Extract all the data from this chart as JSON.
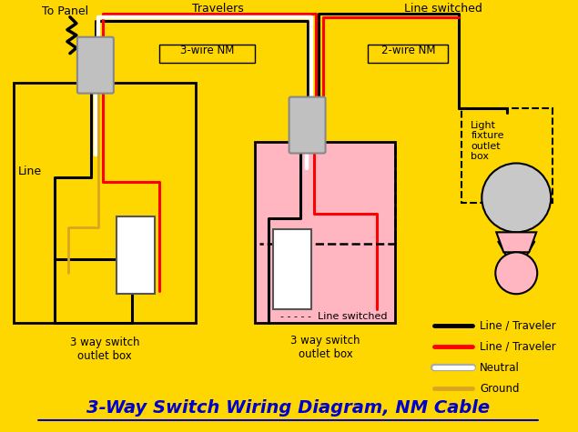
{
  "bg_color": "#FFD700",
  "title": "3-Way Switch Wiring Diagram, NM Cable",
  "title_color": "#0000CC",
  "title_fontsize": 14,
  "legend_items": [
    {
      "label": "Line / Traveler",
      "color": "#000000"
    },
    {
      "label": "Line / Traveler",
      "color": "#FF0000"
    },
    {
      "label": "Neutral",
      "color": "#FFFFFF"
    },
    {
      "label": "Ground",
      "color": "#DAA520"
    }
  ],
  "labels": {
    "to_panel": "To Panel",
    "travelers": "Travelers",
    "line_switched": "Line switched",
    "three_wire_nm": "3-wire NM",
    "two_wire_nm": "2-wire NM",
    "line": "Line",
    "box1": "3 way switch\noutlet box",
    "box2": "3 way switch\noutlet box",
    "light_fixture": "Light\nfixture\noutlet\nbox",
    "dashed_label": "- - - - -  Line switched"
  }
}
